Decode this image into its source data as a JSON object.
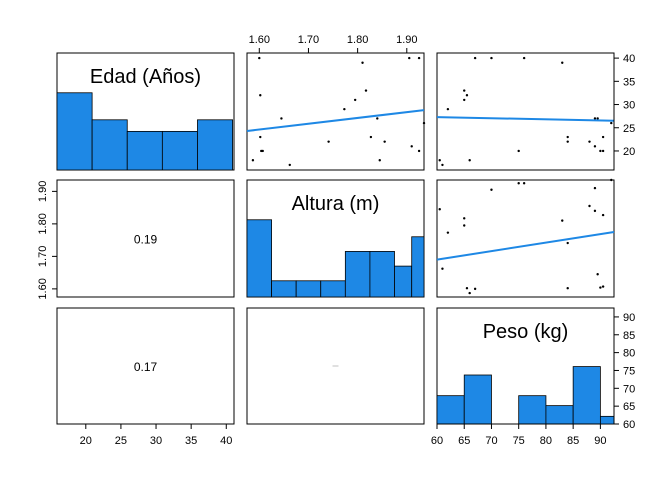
{
  "colors": {
    "bar_fill": "#1E88E5",
    "line": "#1E88E5",
    "point": "#000000",
    "frame": "#000000"
  },
  "variables": [
    {
      "label": "Edad (Años)",
      "range": [
        15.9,
        41.1
      ],
      "ticks": [
        "20",
        "25",
        "30",
        "35",
        "40"
      ],
      "tick_values": [
        20,
        25,
        30,
        35,
        40
      ]
    },
    {
      "label": "Altura (m)",
      "range": [
        1.575,
        1.935
      ],
      "ticks": [
        "1.60",
        "1.70",
        "1.80",
        "1.90"
      ],
      "tick_values": [
        1.6,
        1.7,
        1.8,
        1.9
      ]
    },
    {
      "label": "Peso (kg)",
      "range": [
        60,
        92.5
      ],
      "ticks": [
        "60",
        "65",
        "70",
        "75",
        "80",
        "85",
        "90"
      ],
      "tick_values": [
        60,
        65,
        70,
        75,
        80,
        85,
        90
      ]
    }
  ],
  "chart_data": {
    "type": "scatter",
    "layout": "pairs",
    "points": [
      {
        "edad": 17,
        "altura": 1.662,
        "peso": 61
      },
      {
        "edad": 18,
        "altura": 1.587,
        "peso": 66
      },
      {
        "edad": 18,
        "altura": 1.845,
        "peso": 60.5
      },
      {
        "edad": 20,
        "altura": 1.604,
        "peso": 90
      },
      {
        "edad": 20,
        "altura": 1.925,
        "peso": 75
      },
      {
        "edad": 20,
        "altura": 1.607,
        "peso": 90.5
      },
      {
        "edad": 21,
        "altura": 1.91,
        "peso": 89
      },
      {
        "edad": 22,
        "altura": 1.741,
        "peso": 84
      },
      {
        "edad": 22,
        "altura": 1.855,
        "peso": 88
      },
      {
        "edad": 23,
        "altura": 1.827,
        "peso": 90.5
      },
      {
        "edad": 23,
        "altura": 1.602,
        "peso": 84
      },
      {
        "edad": 26,
        "altura": 1.935,
        "peso": 92
      },
      {
        "edad": 27,
        "altura": 1.645,
        "peso": 89.5
      },
      {
        "edad": 27,
        "altura": 1.84,
        "peso": 89
      },
      {
        "edad": 29,
        "altura": 1.773,
        "peso": 62
      },
      {
        "edad": 31,
        "altura": 1.795,
        "peso": 65
      },
      {
        "edad": 32,
        "altura": 1.602,
        "peso": 65.5
      },
      {
        "edad": 33,
        "altura": 1.817,
        "peso": 65
      },
      {
        "edad": 39,
        "altura": 1.81,
        "peso": 83
      },
      {
        "edad": 40,
        "altura": 1.6,
        "peso": 67
      },
      {
        "edad": 40,
        "altura": 1.925,
        "peso": 76
      },
      {
        "edad": 40,
        "altura": 1.905,
        "peso": 70
      }
    ],
    "histograms": [
      {
        "variable": "Edad (Años)",
        "bins": [
          [
            15.9,
            20.9
          ],
          [
            20.9,
            25.9
          ],
          [
            25.9,
            30.9
          ],
          [
            30.9,
            35.9
          ],
          [
            35.9,
            40.9
          ]
        ],
        "heights": [
          1.0,
          0.65,
          0.5,
          0.5,
          0.65
        ]
      },
      {
        "variable": "Altura (m)",
        "bins": [
          [
            1.575,
            1.625
          ],
          [
            1.625,
            1.675
          ],
          [
            1.675,
            1.725
          ],
          [
            1.725,
            1.775
          ],
          [
            1.775,
            1.825
          ],
          [
            1.825,
            1.875
          ],
          [
            1.875,
            1.91
          ],
          [
            1.91,
            1.935
          ]
        ],
        "heights": [
          1.0,
          0.21,
          0.21,
          0.21,
          0.59,
          0.59,
          0.4,
          0.78
        ]
      },
      {
        "variable": "Peso (kg)",
        "bins": [
          [
            60,
            65
          ],
          [
            65,
            70
          ],
          [
            70,
            75
          ],
          [
            75,
            80
          ],
          [
            80,
            85
          ],
          [
            85,
            90
          ],
          [
            90,
            92.5
          ]
        ],
        "heights": [
          0.37,
          0.64,
          0,
          0.37,
          0.24,
          0.75,
          0.1
        ]
      }
    ],
    "fit_lines": [
      {
        "x": "altura",
        "y": "edad",
        "x0": 1.575,
        "y0": 24.3,
        "x1": 1.935,
        "y1": 28.8
      },
      {
        "x": "peso",
        "y": "edad",
        "x0": 60,
        "y0": 27.3,
        "x1": 92.5,
        "y1": 26.5
      },
      {
        "x": "peso",
        "y": "altura",
        "x0": 60,
        "y0": 1.69,
        "x1": 92.5,
        "y1": 1.775
      }
    ],
    "correlations": [
      {
        "row": 2,
        "col": 1,
        "label": "0.19"
      },
      {
        "row": 3,
        "col": 1,
        "label": "0.17"
      },
      {
        "row": 3,
        "col": 2,
        "label": ""
      }
    ],
    "grid": false,
    "legend": "none"
  }
}
